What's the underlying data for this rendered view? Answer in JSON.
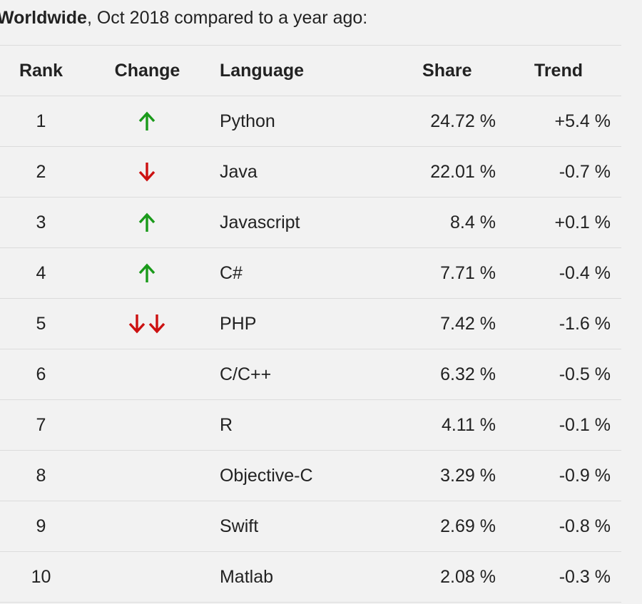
{
  "intro": {
    "bold": "Worldwide",
    "rest": ", Oct 2018 compared to a year ago:"
  },
  "columns": {
    "rank": "Rank",
    "change": "Change",
    "language": "Language",
    "share": "Share",
    "trend": "Trend"
  },
  "colors": {
    "up": "#1a9a1a",
    "down": "#cc1111"
  },
  "rows": [
    {
      "rank": "1",
      "change": [
        "arrow-up-icon"
      ],
      "language": "Python",
      "share": "24.72 %",
      "trend": "+5.4 %"
    },
    {
      "rank": "2",
      "change": [
        "arrow-down-icon"
      ],
      "language": "Java",
      "share": "22.01 %",
      "trend": "-0.7 %"
    },
    {
      "rank": "3",
      "change": [
        "arrow-up-icon"
      ],
      "language": "Javascript",
      "share": "8.4 %",
      "trend": "+0.1 %"
    },
    {
      "rank": "4",
      "change": [
        "arrow-up-icon"
      ],
      "language": "C#",
      "share": "7.71 %",
      "trend": "-0.4 %"
    },
    {
      "rank": "5",
      "change": [
        "arrow-down-icon",
        "arrow-down-icon"
      ],
      "language": "PHP",
      "share": "7.42 %",
      "trend": "-1.6 %"
    },
    {
      "rank": "6",
      "change": [],
      "language": "C/C++",
      "share": "6.32 %",
      "trend": "-0.5 %"
    },
    {
      "rank": "7",
      "change": [],
      "language": "R",
      "share": "4.11 %",
      "trend": "-0.1 %"
    },
    {
      "rank": "8",
      "change": [],
      "language": "Objective-C",
      "share": "3.29 %",
      "trend": "-0.9 %"
    },
    {
      "rank": "9",
      "change": [],
      "language": "Swift",
      "share": "2.69 %",
      "trend": "-0.8 %"
    },
    {
      "rank": "10",
      "change": [],
      "language": "Matlab",
      "share": "2.08 %",
      "trend": "-0.3 %"
    }
  ]
}
